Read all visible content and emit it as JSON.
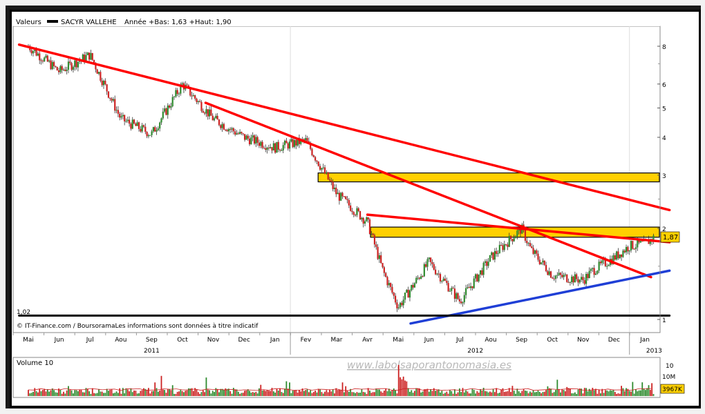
{
  "header": {
    "label": "Valeurs",
    "symbol": "SACYR VALLEHE",
    "range_text": "Année +Bas: 1,63 +Haut: 1,90"
  },
  "footer_source": "© IT-Finance.com / BoursoramaLes informations sont données à titre indicatif",
  "watermark": "www.labolsaporantonomasia.es",
  "colors": {
    "trend_red": "#ff0000",
    "trend_blue": "#1f3fd6",
    "zone_yellow": "#ffd000",
    "up_candle": "#2e8b2e",
    "down_candle": "#cc2222",
    "frame_shadow": "#000000"
  },
  "chart_data": [
    {
      "type": "candlestick",
      "title": "",
      "y_scale": "log",
      "yticks": [
        "1",
        "2",
        "3",
        "4",
        "5",
        "6",
        "8"
      ],
      "ylim": [
        0.95,
        9.5
      ],
      "x_months": [
        "Mai",
        "Jun",
        "Jul",
        "Aou",
        "Sep",
        "Oct",
        "Nov",
        "Dec",
        "Jan",
        "Fev",
        "Mar",
        "Avr",
        "Mai",
        "Jun",
        "Jul",
        "Aou",
        "Sep",
        "Oct",
        "Nov",
        "Dec",
        "Jan"
      ],
      "x_years": [
        "2011",
        "2012",
        "2013"
      ],
      "last_price_label": "1,87",
      "low_marker_label": "1,02",
      "series": [
        {
          "t": [
            0,
            1,
            2,
            3,
            4,
            5,
            6,
            7,
            8,
            9,
            10,
            11,
            11.5,
            12,
            13,
            14,
            15,
            16,
            16.3,
            17,
            18,
            18.3,
            19,
            19.5,
            20,
            20.3
          ],
          "close": [
            8.0,
            6.6,
            7.5,
            4.6,
            4.1,
            6.0,
            4.6,
            4.0,
            3.7,
            3.9,
            2.6,
            2.1,
            1.45,
            1.1,
            1.55,
            1.15,
            1.6,
            2.0,
            1.7,
            1.4,
            1.35,
            1.45,
            1.6,
            1.75,
            1.78,
            1.87
          ]
        }
      ],
      "trend_lines": [
        {
          "color": "red",
          "from": [
            -0.3,
            8.1
          ],
          "to": [
            20.8,
            2.3
          ]
        },
        {
          "color": "red",
          "from": [
            5.75,
            5.2
          ],
          "to": [
            20.2,
            1.38
          ]
        },
        {
          "color": "red",
          "from": [
            11,
            2.22
          ],
          "to": [
            20.8,
            1.8
          ]
        },
        {
          "color": "blue",
          "from": [
            12.4,
            0.97
          ],
          "to": [
            20.8,
            1.45
          ]
        },
        {
          "color": "black",
          "from": [
            -0.3,
            1.03
          ],
          "to": [
            20.8,
            1.03
          ]
        }
      ],
      "zones": [
        {
          "from_t": 9.4,
          "y_low": 2.85,
          "y_high": 3.05
        },
        {
          "from_t": 11.1,
          "y_low": 1.87,
          "y_high": 2.02
        }
      ]
    },
    {
      "type": "bar",
      "title": "Volume 10",
      "yticks": [
        "10",
        "10M",
        "3967K"
      ],
      "last_volume_label": "3967K"
    }
  ]
}
